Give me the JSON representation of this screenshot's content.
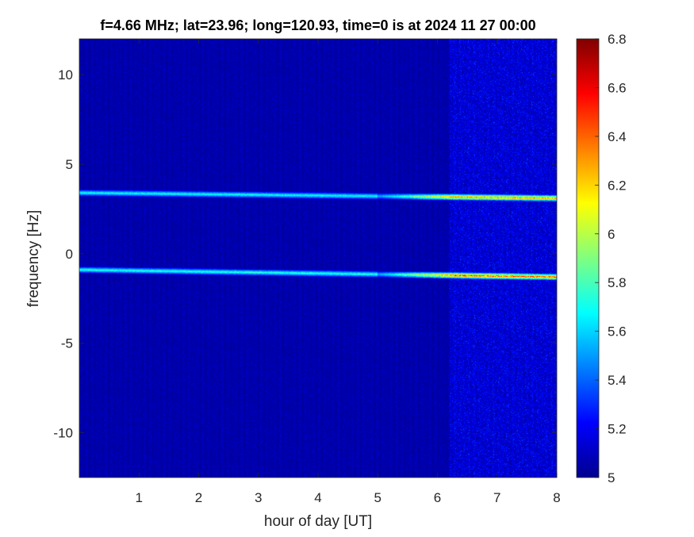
{
  "chart_data": {
    "type": "heatmap",
    "title": "f=4.66 MHz;  lat=23.96; long=120.93, time=0 is at 2024 11 27 00:00",
    "xlabel": "hour of day [UT]",
    "ylabel": "frequency [Hz]",
    "xlim": [
      0,
      8
    ],
    "ylim": [
      -12.5,
      12
    ],
    "x_ticks": [
      1,
      2,
      3,
      4,
      5,
      6,
      7,
      8
    ],
    "y_ticks": [
      -10,
      -5,
      0,
      5,
      10
    ],
    "colormap": "jet",
    "clim": [
      5,
      6.8
    ],
    "colorbar_ticks": [
      5,
      5.2,
      5.4,
      5.6,
      5.8,
      6,
      6.2,
      6.4,
      6.6,
      6.8
    ],
    "background_level": 5.05,
    "traces": [
      {
        "freq_start": -0.9,
        "freq_end": -1.3,
        "peak_value": 6.35
      },
      {
        "freq_start": 3.4,
        "freq_end": 3.1,
        "peak_value": 6.2
      }
    ],
    "noise_increase_after_hour": 6.2
  }
}
